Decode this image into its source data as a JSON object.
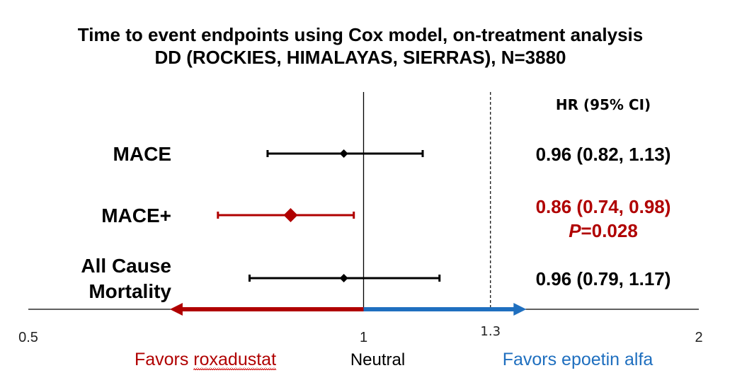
{
  "chart_data": {
    "type": "forest",
    "title_lines": [
      "Time to event endpoints using Cox model, on-treatment analysis",
      "DD (ROCKIES, HIMALAYAS, SIERRAS), N=3880"
    ],
    "hr_header": "HR (95% CI)",
    "x_axis": {
      "scale": "log",
      "xlim": [
        0.5,
        2
      ],
      "ticks": [
        {
          "value": 0.5,
          "label": "0.5"
        },
        {
          "value": 1,
          "label": "1"
        },
        {
          "value": 1.3,
          "label": "1.3"
        },
        {
          "value": 2,
          "label": "2"
        }
      ],
      "neutral_value": 1,
      "reference_value": 1.3
    },
    "rows": [
      {
        "label_lines": [
          "MACE"
        ],
        "hr": 0.96,
        "lo": 0.82,
        "hi": 1.13,
        "ci_text": "0.96 (0.82, 1.13)",
        "p_prefix": "",
        "p_value": "",
        "color": "#000000",
        "highlight": false
      },
      {
        "label_lines": [
          "MACE+"
        ],
        "hr": 0.86,
        "lo": 0.74,
        "hi": 0.98,
        "ci_text": "0.86 (0.74, 0.98)",
        "p_prefix": "P",
        "p_value": "=0.028",
        "color": "#b00000",
        "highlight": true
      },
      {
        "label_lines": [
          "All Cause",
          "Mortality"
        ],
        "hr": 0.96,
        "lo": 0.79,
        "hi": 1.17,
        "ci_text": "0.96 (0.79, 1.17)",
        "p_prefix": "",
        "p_value": "",
        "color": "#000000",
        "highlight": false
      }
    ],
    "favors_left": {
      "prefix": "Favors ",
      "emph": "roxadustat",
      "color": "#b00000"
    },
    "favors_right": {
      "text": "Favors epoetin alfa",
      "color": "#1f6fbf"
    },
    "neutral_label": "Neutral",
    "left_arrow_to": 0.67,
    "right_arrow_to": 1.4
  }
}
